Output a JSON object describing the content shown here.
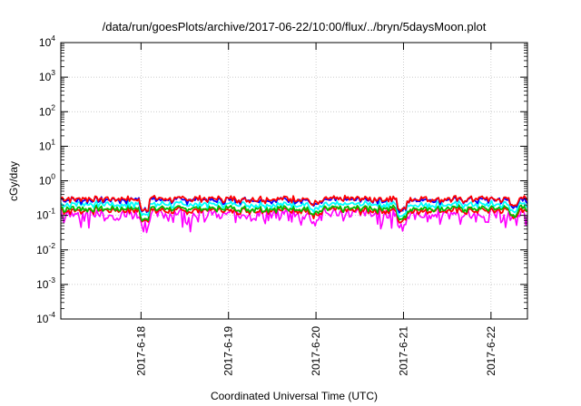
{
  "chart_data": {
    "type": "line",
    "title": "/data/run/goesPlots/archive/2017-06-22/10:00/flux/../bryn/5daysMoon.plot",
    "xlabel": "Coordinated Universal Time (UTC)",
    "ylabel": "cGy/day",
    "x_axis": {
      "type": "time",
      "xlim": [
        "2017-06-17 02:00",
        "2017-06-22 10:00"
      ],
      "ticks": [
        "2017-6-18",
        "2017-6-19",
        "2017-6-20",
        "2017-6-21",
        "2017-6-22"
      ]
    },
    "y_axis": {
      "scale": "log",
      "ylim": [
        0.0001,
        10000
      ],
      "tick_base": "10",
      "tick_exponents": [
        "-4",
        "-3",
        "-2",
        "-1",
        "0",
        "1",
        "2",
        "3",
        "4"
      ]
    },
    "grid": true,
    "legend": "none",
    "series": [
      {
        "color": "#ff00ff",
        "baseline": 0.11,
        "values_desc": "noisy, dips to ~0.05"
      },
      {
        "color": "#ff0000",
        "baseline": 0.14
      },
      {
        "color": "#00bb00",
        "baseline": 0.16
      },
      {
        "color": "#00ffff",
        "baseline": 0.21
      },
      {
        "color": "#0000ff",
        "baseline": 0.28
      },
      {
        "color": "#ff0000",
        "baseline": 0.3
      }
    ]
  }
}
